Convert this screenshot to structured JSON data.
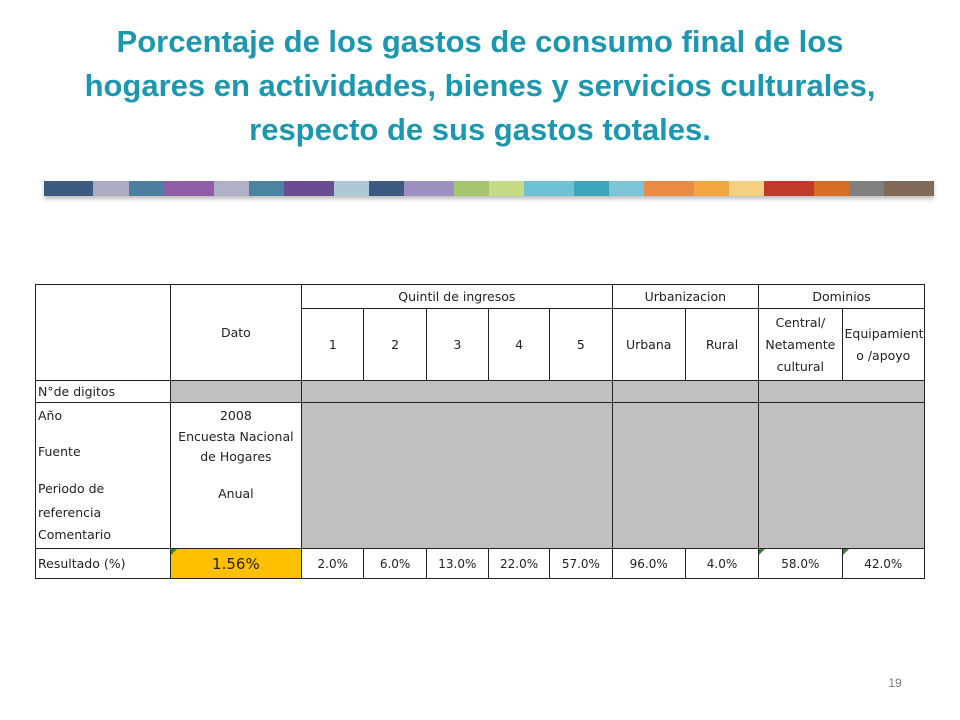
{
  "title": "Porcentaje de los gastos de consumo final de los hogares en actividades, bienes y servicios culturales, respecto de sus gastos totales.",
  "decoration_colors": [
    "#3d5a80",
    "#9e9eb8",
    "#4a7fa0",
    "#7b3f99",
    "#b0b0c8",
    "#2a6f8f",
    "#6a4c93",
    "#9fbfcf",
    "#3d5a80",
    "#8c7bb5",
    "#a5c66e",
    "#bcd66f",
    "#6dc3d3",
    "#1b97b0",
    "#7cc5d6",
    "#e87722",
    "#f2a541",
    "#f3c86a",
    "#c0392b",
    "#d35400",
    "#7f7f7f",
    "#6b4f3a"
  ],
  "table": {
    "headers": {
      "dato": "Dato",
      "quintil_group": "Quintil de ingresos",
      "urbanizacion_group": "Urbanizacion",
      "dominios_group": "Dominios",
      "quintiles": [
        "1",
        "2",
        "3",
        "4",
        "5"
      ],
      "urbanizacion": [
        "Urbana",
        "Rural"
      ],
      "dominios": [
        "Central/ Netamente cultural",
        "Equipamient o /apoyo"
      ]
    },
    "rows": {
      "digitos_label": "N°de digitos",
      "anio_label": "Año",
      "fuente_label": "Fuente",
      "periodo_label": "Periodo de referencia",
      "comentario_label": "Comentario",
      "anio_value": "2008",
      "fuente_value": "Encuesta Nacional de Hogares",
      "periodo_value": "Anual"
    },
    "resultado": {
      "label": "Resultado (%)",
      "dato": "1.56%",
      "quintiles": [
        "2.0%",
        "6.0%",
        "13.0%",
        "22.0%",
        "57.0%"
      ],
      "urbanizacion": [
        "96.0%",
        "4.0%"
      ],
      "dominios": [
        "58.0%",
        "42.0%"
      ]
    }
  },
  "page_number": "19"
}
